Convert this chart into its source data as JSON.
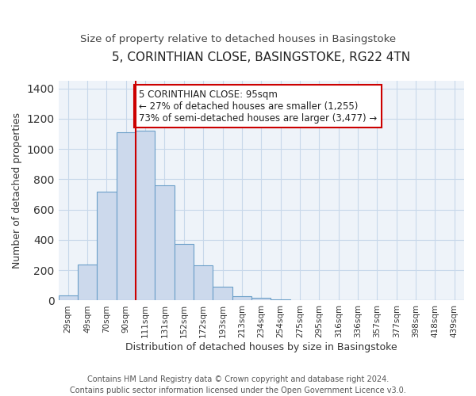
{
  "title": "5, CORINTHIAN CLOSE, BASINGSTOKE, RG22 4TN",
  "subtitle": "Size of property relative to detached houses in Basingstoke",
  "xlabel": "Distribution of detached houses by size in Basingstoke",
  "ylabel": "Number of detached properties",
  "bar_labels": [
    "29sqm",
    "49sqm",
    "70sqm",
    "90sqm",
    "111sqm",
    "131sqm",
    "152sqm",
    "172sqm",
    "193sqm",
    "213sqm",
    "234sqm",
    "254sqm",
    "275sqm",
    "295sqm",
    "316sqm",
    "336sqm",
    "357sqm",
    "377sqm",
    "398sqm",
    "418sqm",
    "439sqm"
  ],
  "bar_values": [
    35,
    240,
    720,
    1110,
    1120,
    760,
    375,
    230,
    90,
    30,
    20,
    10,
    0,
    0,
    0,
    0,
    0,
    0,
    0,
    0,
    0
  ],
  "bar_color": "#ccd9ec",
  "bar_edge_color": "#6b9fc8",
  "vline_x_index": 4,
  "vline_color": "#cc0000",
  "annotation_text": "5 CORINTHIAN CLOSE: 95sqm\n← 27% of detached houses are smaller (1,255)\n73% of semi-detached houses are larger (3,477) →",
  "annotation_box_edgecolor": "#cc0000",
  "annotation_box_facecolor": "#ffffff",
  "ylim": [
    0,
    1450
  ],
  "footer_line1": "Contains HM Land Registry data © Crown copyright and database right 2024.",
  "footer_line2": "Contains public sector information licensed under the Open Government Licence v3.0.",
  "background_color": "#ffffff",
  "grid_color": "#c8d8ea",
  "title_fontsize": 11,
  "subtitle_fontsize": 9.5,
  "axis_label_fontsize": 9,
  "tick_fontsize": 7.5,
  "annotation_fontsize": 8.5,
  "footer_fontsize": 7
}
